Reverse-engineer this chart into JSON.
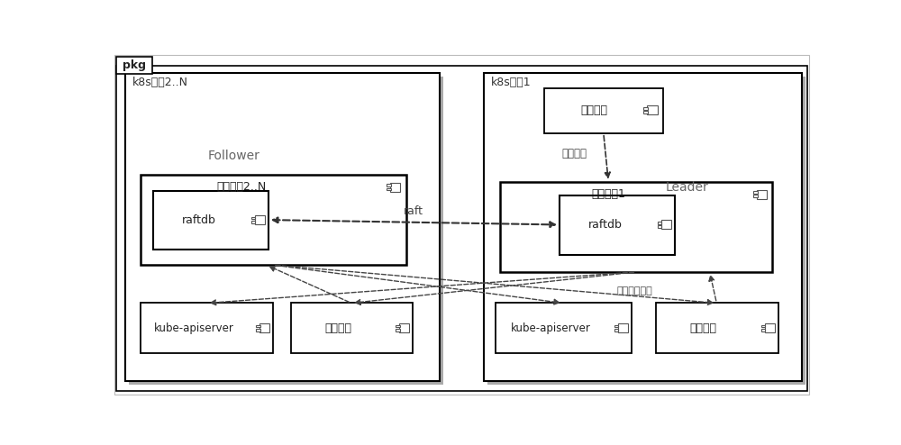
{
  "bg_color": "#ffffff",
  "pkg_label": "pkg",
  "cluster_left_label": "k8s集群2..N",
  "cluster_right_label": "k8s集群1",
  "follower_label": "Follower",
  "leader_label": "Leader",
  "left_service_label": "伸缩服务2..N",
  "right_service_label": "伸缩服务1",
  "raftdb_label": "raftdb",
  "kube_api_label": "kube-apiserver",
  "monitor_left_label": "监控服务",
  "monitor_right_label": "监控服务",
  "external_label": "外部系统",
  "raft_label": "raft",
  "policy_label": "策略配置",
  "metrics_label": "获取监控指标"
}
